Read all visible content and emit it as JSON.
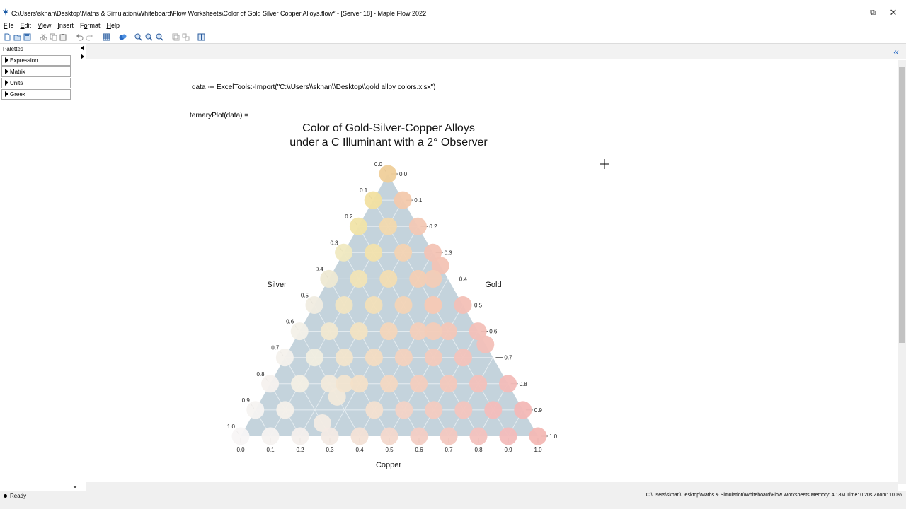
{
  "window": {
    "title": "C:\\Users\\skhan\\Desktop\\Maths & Simulation\\Whiteboard\\Flow Worksheets\\Color of Gold Silver Copper Alloys.flow* - [Server 18] - Maple Flow 2022"
  },
  "menu": {
    "items": [
      {
        "pre": "",
        "u": "F",
        "post": "ile"
      },
      {
        "pre": "",
        "u": "E",
        "post": "dit"
      },
      {
        "pre": "",
        "u": "V",
        "post": "iew"
      },
      {
        "pre": "",
        "u": "I",
        "post": "nsert"
      },
      {
        "pre": "F",
        "u": "o",
        "post": "rmat"
      },
      {
        "pre": "",
        "u": "H",
        "post": "elp"
      }
    ]
  },
  "palettes": {
    "tab_label": "Palettes",
    "items": [
      "Expression",
      "Matrix",
      "Units",
      "Greek"
    ]
  },
  "worksheet": {
    "import_statement": "data ≔ ExcelTools:-Import(\"C:\\\\Users\\\\skhan\\\\Desktop\\\\gold alloy colors.xlsx\")",
    "plot_statement": "ternaryPlot(data) ="
  },
  "status": {
    "ready": "Ready",
    "right": "C:\\Users\\skhan\\Desktop\\Maths & Simulation\\Whiteboard\\Flow Worksheets   Memory: 4.18M   Time: 0.20s   Zoom: 100%"
  },
  "chart_data": {
    "type": "scatter",
    "subtype": "ternary",
    "title_line1": "Color of Gold-Silver-Copper Alloys",
    "title_line2": "under a C Illuminant with a 2° Observer",
    "axis_labels": {
      "left": "Silver",
      "right": "Gold",
      "bottom": "Copper"
    },
    "left_ticks": [
      "0.0",
      "0.1",
      "0.2",
      "0.3",
      "0.4",
      "0.5",
      "0.6",
      "0.7",
      "0.8",
      "0.9",
      "1.0"
    ],
    "right_ticks": [
      "1.0",
      "0.9",
      "0.8",
      "0.7",
      "0.6",
      "0.5",
      "0.4",
      "0.3",
      "0.2",
      "0.1",
      "0.0"
    ],
    "bottom_ticks": [
      "0.0",
      "0.1",
      "0.2",
      "0.3",
      "0.4",
      "0.5",
      "0.6",
      "0.7",
      "0.8",
      "0.9",
      "1.0"
    ],
    "background_color": "#c4d3dc",
    "grid_color": "#e6edf1",
    "points": [
      {
        "copper": 0.0,
        "silver": 0.0,
        "color": "#efcf9a"
      },
      {
        "copper": 0.0,
        "silver": 0.1,
        "color": "#f2e0a0"
      },
      {
        "copper": 0.1,
        "silver": 0.0,
        "color": "#f3c9ac"
      },
      {
        "copper": 0.0,
        "silver": 0.2,
        "color": "#f1e4a8"
      },
      {
        "copper": 0.1,
        "silver": 0.1,
        "color": "#f2d9ae"
      },
      {
        "copper": 0.2,
        "silver": 0.0,
        "color": "#f3c8b4"
      },
      {
        "copper": 0.0,
        "silver": 0.3,
        "color": "#f0e9c0"
      },
      {
        "copper": 0.1,
        "silver": 0.2,
        "color": "#f2e2ac"
      },
      {
        "copper": 0.2,
        "silver": 0.1,
        "color": "#f3d3b2"
      },
      {
        "copper": 0.3,
        "silver": 0.0,
        "color": "#f3c3b4"
      },
      {
        "copper": 0.35,
        "silver": 0.0,
        "color": "#f3c3b4"
      },
      {
        "copper": 0.0,
        "silver": 0.4,
        "color": "#eee9d3"
      },
      {
        "copper": 0.1,
        "silver": 0.3,
        "color": "#f1e4b6"
      },
      {
        "copper": 0.2,
        "silver": 0.2,
        "color": "#f2ddb2"
      },
      {
        "copper": 0.3,
        "silver": 0.1,
        "color": "#f3cfb4"
      },
      {
        "copper": 0.35,
        "silver": 0.05,
        "color": "#f3ccb6"
      },
      {
        "copper": 0.0,
        "silver": 0.5,
        "color": "#f0ece0"
      },
      {
        "copper": 0.1,
        "silver": 0.4,
        "color": "#f1e5c2"
      },
      {
        "copper": 0.2,
        "silver": 0.3,
        "color": "#f2dfb8"
      },
      {
        "copper": 0.3,
        "silver": 0.2,
        "color": "#f3d4b6"
      },
      {
        "copper": 0.4,
        "silver": 0.1,
        "color": "#f3c9b6"
      },
      {
        "copper": 0.4,
        "silver": 0.1,
        "color": "#f3c9b6"
      },
      {
        "copper": 0.5,
        "silver": 0.0,
        "color": "#f3c0b6"
      },
      {
        "copper": 0.0,
        "silver": 0.6,
        "color": "#f3f0e8"
      },
      {
        "copper": 0.1,
        "silver": 0.5,
        "color": "#f1e8d0"
      },
      {
        "copper": 0.2,
        "silver": 0.4,
        "color": "#f2e3c2"
      },
      {
        "copper": 0.3,
        "silver": 0.3,
        "color": "#f3d6ba"
      },
      {
        "copper": 0.4,
        "silver": 0.2,
        "color": "#f3cfba"
      },
      {
        "copper": 0.5,
        "silver": 0.1,
        "color": "#f3c7b8"
      },
      {
        "copper": 0.6,
        "silver": 0.0,
        "color": "#f3c0b8"
      },
      {
        "copper": 0.65,
        "silver": 0.0,
        "color": "#f3c0b8"
      },
      {
        "copper": 0.45,
        "silver": 0.15,
        "color": "#f3ccb8"
      },
      {
        "copper": 0.0,
        "silver": 0.7,
        "color": "#f4f1ec"
      },
      {
        "copper": 0.1,
        "silver": 0.6,
        "color": "#f1eee0"
      },
      {
        "copper": 0.2,
        "silver": 0.5,
        "color": "#f2e5cc"
      },
      {
        "copper": 0.3,
        "silver": 0.4,
        "color": "#f3dcc2"
      },
      {
        "copper": 0.4,
        "silver": 0.3,
        "color": "#f3d2be"
      },
      {
        "copper": 0.5,
        "silver": 0.2,
        "color": "#f3cabc"
      },
      {
        "copper": 0.6,
        "silver": 0.1,
        "color": "#f3c3ba"
      },
      {
        "copper": 0.0,
        "silver": 0.8,
        "color": "#f5f1ee"
      },
      {
        "copper": 0.1,
        "silver": 0.7,
        "color": "#f3efe4"
      },
      {
        "copper": 0.2,
        "silver": 0.6,
        "color": "#f2eadb"
      },
      {
        "copper": 0.25,
        "silver": 0.6,
        "color": "#f2eadb"
      },
      {
        "copper": 0.25,
        "silver": 0.55,
        "color": "#f2e5d0"
      },
      {
        "copper": 0.3,
        "silver": 0.5,
        "color": "#f3e0c8"
      },
      {
        "copper": 0.4,
        "silver": 0.4,
        "color": "#f3d8c2"
      },
      {
        "copper": 0.5,
        "silver": 0.3,
        "color": "#f3cebe"
      },
      {
        "copper": 0.6,
        "silver": 0.2,
        "color": "#f3c8bc"
      },
      {
        "copper": 0.7,
        "silver": 0.1,
        "color": "#f3c1ba"
      },
      {
        "copper": 0.8,
        "silver": 0.0,
        "color": "#f3bcb8"
      },
      {
        "copper": 0.0,
        "silver": 0.9,
        "color": "#f6f3f1"
      },
      {
        "copper": 0.1,
        "silver": 0.8,
        "color": "#f4f0ea"
      },
      {
        "copper": 0.25,
        "silver": 0.7,
        "color": "#f3ece4"
      },
      {
        "copper": 0.4,
        "silver": 0.5,
        "color": "#f3e0d0"
      },
      {
        "copper": 0.5,
        "silver": 0.4,
        "color": "#f3d3c6"
      },
      {
        "copper": 0.6,
        "silver": 0.3,
        "color": "#f3cbc0"
      },
      {
        "copper": 0.7,
        "silver": 0.2,
        "color": "#f3c5be"
      },
      {
        "copper": 0.8,
        "silver": 0.1,
        "color": "#f3bdba"
      },
      {
        "copper": 0.9,
        "silver": 0.0,
        "color": "#f3b8b6"
      },
      {
        "copper": 0.0,
        "silver": 1.0,
        "color": "#f8f6f5"
      },
      {
        "copper": 0.1,
        "silver": 0.9,
        "color": "#f6f2f0"
      },
      {
        "copper": 0.2,
        "silver": 0.8,
        "color": "#f4efec"
      },
      {
        "copper": 0.3,
        "silver": 0.7,
        "color": "#f3eae4"
      },
      {
        "copper": 0.4,
        "silver": 0.6,
        "color": "#f3e2d6"
      },
      {
        "copper": 0.5,
        "silver": 0.5,
        "color": "#f3d8cc"
      },
      {
        "copper": 0.6,
        "silver": 0.4,
        "color": "#f3cec4"
      },
      {
        "copper": 0.7,
        "silver": 0.3,
        "color": "#f3c8c0"
      },
      {
        "copper": 0.8,
        "silver": 0.2,
        "color": "#f3c2be"
      },
      {
        "copper": 0.9,
        "silver": 0.1,
        "color": "#f3bcba"
      },
      {
        "copper": 1.0,
        "silver": 0.0,
        "color": "#f3b8b4"
      }
    ]
  }
}
